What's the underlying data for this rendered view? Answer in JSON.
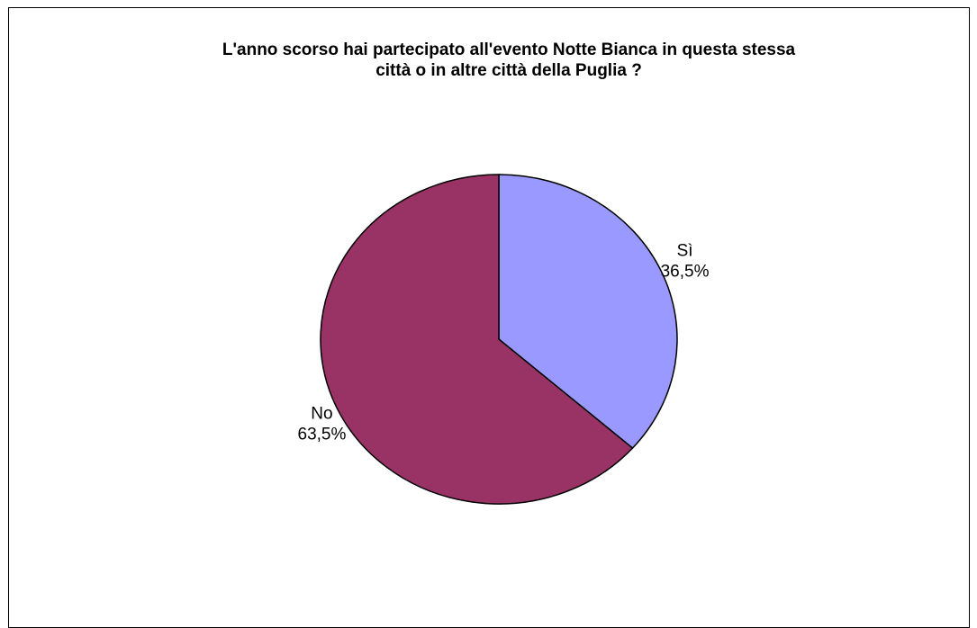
{
  "chart_data": {
    "type": "pie",
    "title_lines": [
      "L'anno scorso hai partecipato all'evento Notte Bianca in questa stessa",
      "città o in altre città della Puglia ?"
    ],
    "slices": [
      {
        "label": "Sì",
        "value_label": "36,5%",
        "value": 36.5,
        "color": "#9999FF"
      },
      {
        "label": "No",
        "value_label": "63,5%",
        "value": 63.5,
        "color": "#993366"
      }
    ],
    "start_angle": "12 o'clock",
    "direction": "clockwise"
  }
}
